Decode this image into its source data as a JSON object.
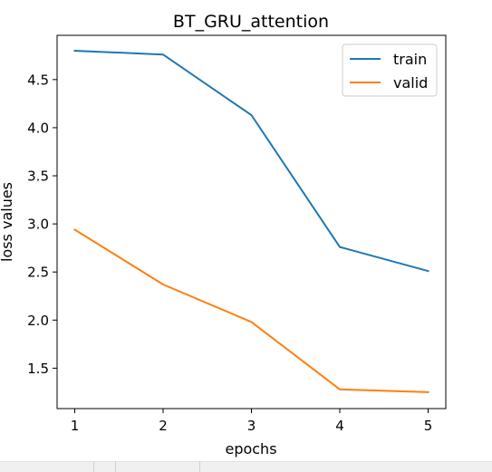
{
  "chart_data": {
    "type": "line",
    "title": "BT_GRU_attention",
    "xlabel": "epochs",
    "ylabel": "loss values",
    "x": [
      1,
      2,
      3,
      4,
      5
    ],
    "x_ticks": [
      "1",
      "2",
      "3",
      "4",
      "5"
    ],
    "y_ticks": [
      "1.5",
      "2.0",
      "2.5",
      "3.0",
      "3.5",
      "4.0",
      "4.5"
    ],
    "y_tick_values": [
      1.5,
      2.0,
      2.5,
      3.0,
      3.5,
      4.0,
      4.5
    ],
    "xlim": [
      0.8,
      5.2
    ],
    "ylim": [
      1.08,
      4.96
    ],
    "grid": false,
    "legend_position": "top-right",
    "series": [
      {
        "name": "train",
        "color": "#1f77b4",
        "values": [
          4.8,
          4.76,
          4.13,
          2.76,
          2.51
        ]
      },
      {
        "name": "valid",
        "color": "#ff7f0e",
        "values": [
          2.94,
          2.37,
          1.98,
          1.28,
          1.25
        ]
      }
    ]
  }
}
